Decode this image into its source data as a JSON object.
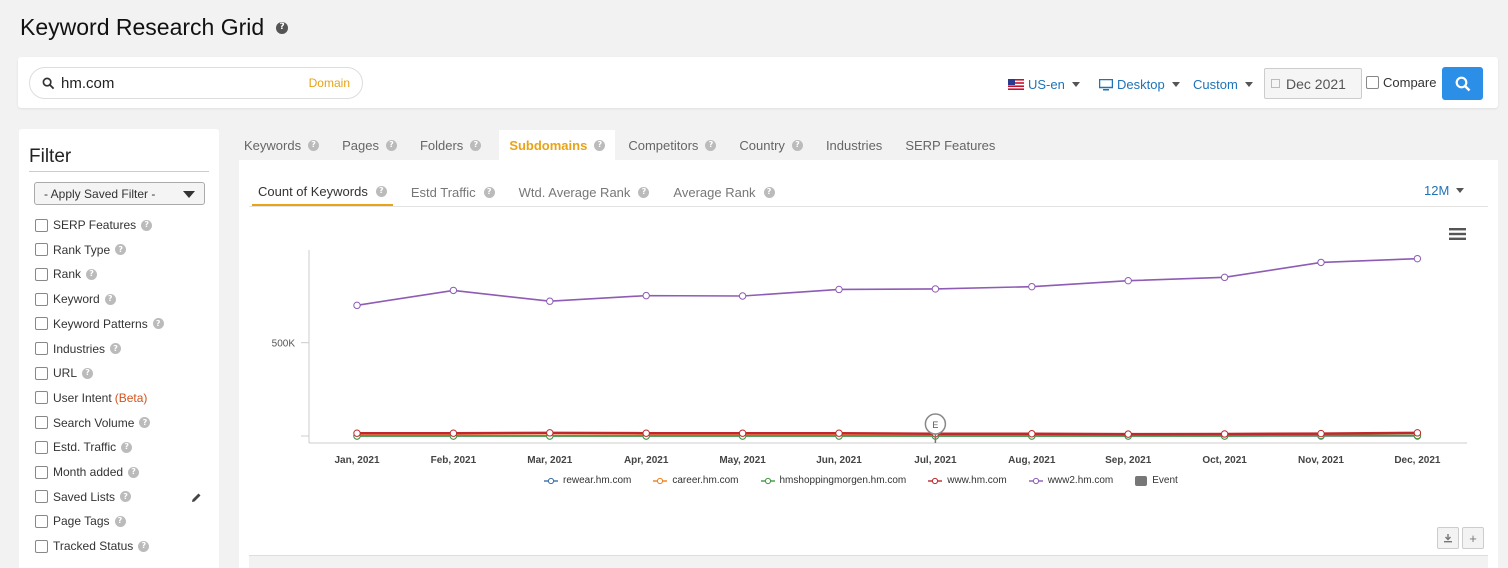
{
  "page": {
    "title": "Keyword Research Grid"
  },
  "search": {
    "value": "hm.com",
    "type_label": "Domain"
  },
  "toolbar": {
    "locale": "US-en",
    "device": "Desktop",
    "range_mode": "Custom",
    "date": "Dec 2021",
    "compare_label": "Compare"
  },
  "filter": {
    "title": "Filter",
    "saved_filter": "- Apply Saved Filter -",
    "items": [
      {
        "label": "SERP Features",
        "help": true
      },
      {
        "label": "Rank Type",
        "help": true
      },
      {
        "label": "Rank",
        "help": true
      },
      {
        "label": "Keyword",
        "help": true
      },
      {
        "label": "Keyword Patterns",
        "help": true
      },
      {
        "label": "Industries",
        "help": true
      },
      {
        "label": "URL",
        "help": true
      },
      {
        "label": "User Intent",
        "badge": "(Beta)",
        "help": false
      },
      {
        "label": "Search Volume",
        "help": true
      },
      {
        "label": "Estd. Traffic",
        "help": true
      },
      {
        "label": "Month added",
        "help": true
      },
      {
        "label": "Saved Lists",
        "help": true
      },
      {
        "label": "Page Tags",
        "help": true
      },
      {
        "label": "Tracked Status",
        "help": true
      }
    ]
  },
  "tabs": [
    {
      "label": "Keywords",
      "help": true
    },
    {
      "label": "Pages",
      "help": true
    },
    {
      "label": "Folders",
      "help": true
    },
    {
      "label": "Subdomains",
      "help": true,
      "active": true
    },
    {
      "label": "Competitors",
      "help": true
    },
    {
      "label": "Country",
      "help": true
    },
    {
      "label": "Industries",
      "help": false
    },
    {
      "label": "SERP Features",
      "help": false
    }
  ],
  "subtabs": [
    {
      "label": "Count of Keywords",
      "active": true
    },
    {
      "label": "Estd Traffic"
    },
    {
      "label": "Wtd. Average Rank"
    },
    {
      "label": "Average Rank"
    }
  ],
  "range_select": "12M",
  "chart_data": {
    "type": "line",
    "categories": [
      "Jan, 2021",
      "Feb, 2021",
      "Mar, 2021",
      "Apr, 2021",
      "May, 2021",
      "Jun, 2021",
      "Jul, 2021",
      "Aug, 2021",
      "Sep, 2021",
      "Oct, 2021",
      "Nov, 2021",
      "Dec, 2021"
    ],
    "y_ticks": [
      {
        "value": 500000,
        "label": "500K"
      }
    ],
    "ylim": [
      0,
      1050000
    ],
    "series": [
      {
        "name": "rewear.hm.com",
        "color": "#3a6ea5",
        "values": [
          0,
          0,
          0,
          0,
          0,
          0,
          0,
          0,
          0,
          0,
          0,
          0
        ]
      },
      {
        "name": "career.hm.com",
        "color": "#f07f1b",
        "values": [
          3000,
          3000,
          3000,
          3000,
          3000,
          3000,
          3000,
          3000,
          3000,
          3000,
          3000,
          3000
        ]
      },
      {
        "name": "hmshoppingmorgen.hm.com",
        "color": "#3e9a3e",
        "values": [
          0,
          0,
          0,
          0,
          0,
          0,
          0,
          0,
          0,
          0,
          3000,
          3000
        ]
      },
      {
        "name": "www.hm.com",
        "color": "#c0282d",
        "values": [
          15000,
          15000,
          17000,
          15000,
          15000,
          15000,
          12000,
          12000,
          10000,
          11000,
          13000,
          17000
        ]
      },
      {
        "name": "www2.hm.com",
        "color": "#8e5bb5",
        "values": [
          700000,
          780000,
          722000,
          752000,
          750000,
          785000,
          788000,
          800000,
          832000,
          850000,
          930000,
          950000
        ]
      }
    ],
    "legend_extra": "Event",
    "event_marker": {
      "label": "E",
      "category": "Jul, 2021"
    },
    "legend_position": "bottom",
    "grid": false
  }
}
